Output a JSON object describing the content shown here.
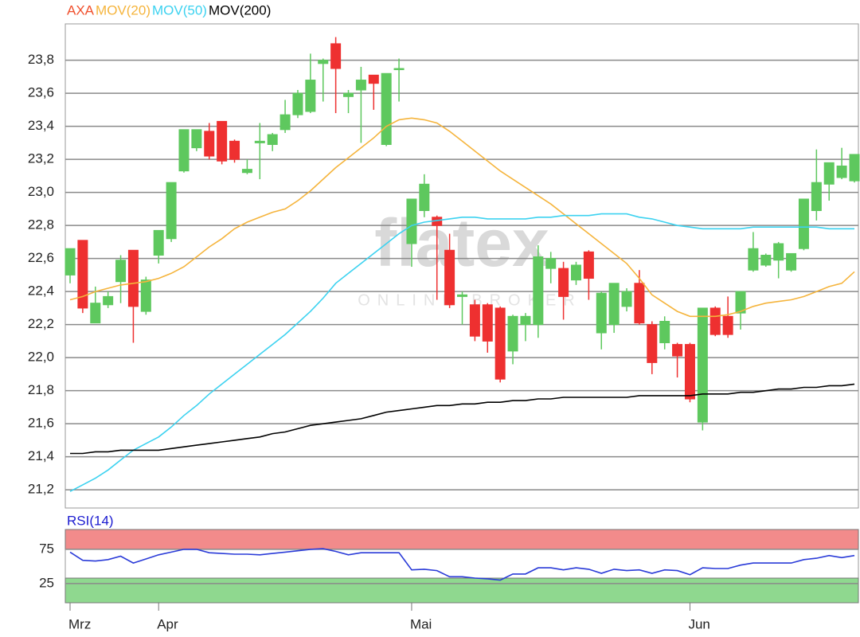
{
  "chart_data": [
    {
      "type": "candlestick",
      "categories": [
        "Mrz",
        null,
        null,
        null,
        null,
        null,
        null,
        "Apr",
        null,
        null,
        null,
        null,
        null,
        null,
        null,
        null,
        null,
        null,
        null,
        null,
        null,
        null,
        null,
        null,
        null,
        null,
        null,
        "Mai",
        null,
        null,
        null,
        null,
        null,
        null,
        null,
        null,
        null,
        null,
        null,
        null,
        null,
        null,
        null,
        null,
        null,
        null,
        null,
        null,
        null,
        "Jun",
        null,
        null,
        null,
        null,
        null,
        null,
        null,
        null,
        null,
        null,
        null,
        null,
        null
      ],
      "series": [
        {
          "name": "AXA",
          "color": "#f0502d",
          "up_color": "#5ec85e",
          "down_color": "#ee3030",
          "open": [
            22.5,
            22.71,
            22.21,
            22.32,
            22.46,
            22.65,
            22.28,
            22.62,
            22.72,
            23.13,
            23.27,
            23.37,
            23.43,
            23.31,
            23.12,
            23.3,
            23.29,
            23.38,
            23.47,
            23.49,
            23.78,
            23.9,
            23.58,
            23.62,
            23.71,
            23.29,
            23.75,
            22.69,
            22.89,
            22.85,
            22.65,
            22.37,
            22.32,
            22.32,
            22.3,
            22.04,
            22.2,
            22.2,
            22.54,
            22.54,
            22.47,
            22.64,
            22.15,
            22.2,
            22.31,
            22.45,
            22.2,
            22.09,
            22.08,
            22.08,
            21.61,
            22.3,
            22.25,
            22.27,
            22.53,
            22.56,
            22.59,
            22.53,
            22.66,
            22.89,
            23.05,
            23.09,
            23.07
          ],
          "high": [
            22.66,
            22.71,
            22.43,
            22.4,
            22.62,
            22.65,
            22.49,
            22.77,
            23.06,
            23.38,
            23.38,
            23.42,
            23.43,
            23.32,
            23.2,
            23.42,
            23.36,
            23.56,
            23.62,
            23.84,
            23.81,
            23.94,
            23.62,
            23.76,
            23.71,
            23.72,
            23.81,
            22.96,
            23.11,
            22.86,
            22.75,
            22.4,
            22.35,
            22.33,
            22.31,
            22.26,
            22.27,
            22.68,
            22.64,
            22.58,
            22.58,
            22.65,
            22.4,
            22.45,
            22.42,
            22.53,
            22.22,
            22.25,
            22.09,
            22.09,
            22.3,
            22.31,
            22.37,
            22.4,
            22.76,
            22.63,
            22.7,
            22.63,
            22.96,
            23.26,
            23.18,
            23.27,
            23.23
          ],
          "low": [
            22.45,
            22.27,
            22.21,
            22.3,
            22.33,
            22.09,
            22.26,
            22.57,
            22.7,
            23.12,
            23.25,
            23.2,
            23.17,
            23.18,
            23.11,
            23.08,
            23.25,
            23.36,
            23.45,
            23.48,
            23.55,
            23.48,
            23.48,
            23.3,
            23.5,
            23.28,
            23.55,
            22.55,
            22.85,
            22.35,
            22.3,
            22.2,
            22.1,
            22.03,
            21.85,
            21.96,
            22.1,
            22.12,
            22.45,
            22.23,
            22.44,
            22.35,
            22.05,
            22.15,
            22.28,
            22.2,
            21.9,
            22.05,
            21.88,
            21.73,
            21.56,
            22.13,
            22.12,
            22.17,
            22.52,
            22.55,
            22.48,
            22.52,
            22.65,
            22.83,
            22.95,
            23.08,
            23.06
          ],
          "close": [
            22.66,
            22.3,
            22.33,
            22.37,
            22.59,
            22.31,
            22.47,
            22.77,
            23.06,
            23.38,
            23.38,
            23.22,
            23.19,
            23.2,
            23.14,
            23.31,
            23.35,
            23.47,
            23.6,
            23.68,
            23.8,
            23.75,
            23.6,
            23.68,
            23.66,
            23.72,
            23.75,
            22.96,
            23.05,
            22.8,
            22.32,
            22.38,
            22.13,
            22.1,
            21.87,
            22.25,
            22.25,
            22.61,
            22.6,
            22.37,
            22.56,
            22.48,
            22.39,
            22.45,
            22.4,
            22.21,
            21.97,
            22.22,
            22.01,
            21.75,
            22.3,
            22.14,
            22.14,
            22.4,
            22.66,
            22.62,
            22.69,
            22.63,
            22.96,
            23.06,
            23.18,
            23.16,
            23.23
          ]
        },
        {
          "name": "MOV(20)",
          "color": "#f5b43c",
          "values": [
            22.35,
            22.37,
            22.4,
            22.42,
            22.44,
            22.45,
            22.46,
            22.48,
            22.51,
            22.55,
            22.61,
            22.67,
            22.72,
            22.78,
            22.82,
            22.85,
            22.88,
            22.9,
            22.95,
            23.01,
            23.08,
            23.15,
            23.21,
            23.27,
            23.33,
            23.4,
            23.44,
            23.45,
            23.44,
            23.42,
            23.37,
            23.31,
            23.25,
            23.19,
            23.13,
            23.08,
            23.03,
            22.98,
            22.93,
            22.87,
            22.81,
            22.75,
            22.69,
            22.63,
            22.57,
            22.48,
            22.38,
            22.33,
            22.28,
            22.25,
            22.25,
            22.25,
            22.26,
            22.28,
            22.31,
            22.33,
            22.34,
            22.35,
            22.37,
            22.4,
            22.43,
            22.45,
            22.52
          ]
        },
        {
          "name": "MOV(50)",
          "color": "#3cd2f0",
          "values": [
            21.19,
            21.23,
            21.27,
            21.32,
            21.38,
            21.44,
            21.48,
            21.52,
            21.58,
            21.65,
            21.71,
            21.78,
            21.84,
            21.9,
            21.96,
            22.02,
            22.08,
            22.14,
            22.21,
            22.28,
            22.36,
            22.45,
            22.51,
            22.57,
            22.63,
            22.69,
            22.75,
            22.8,
            22.82,
            22.83,
            22.84,
            22.85,
            22.85,
            22.84,
            22.84,
            22.84,
            22.84,
            22.85,
            22.85,
            22.86,
            22.86,
            22.86,
            22.87,
            22.87,
            22.87,
            22.85,
            22.84,
            22.82,
            22.8,
            22.79,
            22.78,
            22.78,
            22.78,
            22.78,
            22.79,
            22.79,
            22.79,
            22.79,
            22.79,
            22.79,
            22.78,
            22.78,
            22.78
          ]
        },
        {
          "name": "MOV(200)",
          "color": "#000000",
          "values": [
            21.42,
            21.42,
            21.43,
            21.43,
            21.44,
            21.44,
            21.44,
            21.44,
            21.45,
            21.46,
            21.47,
            21.48,
            21.49,
            21.5,
            21.51,
            21.52,
            21.54,
            21.55,
            21.57,
            21.59,
            21.6,
            21.61,
            21.62,
            21.63,
            21.65,
            21.67,
            21.68,
            21.69,
            21.7,
            21.71,
            21.71,
            21.72,
            21.72,
            21.73,
            21.73,
            21.74,
            21.74,
            21.75,
            21.75,
            21.76,
            21.76,
            21.76,
            21.76,
            21.76,
            21.76,
            21.77,
            21.77,
            21.77,
            21.77,
            21.77,
            21.78,
            21.78,
            21.78,
            21.79,
            21.79,
            21.8,
            21.81,
            21.81,
            21.82,
            21.82,
            21.83,
            21.83,
            21.84
          ]
        }
      ],
      "ylim": [
        21.09,
        24.02
      ],
      "yticks": [
        {
          "value": 21.2,
          "label": "21,2"
        },
        {
          "value": 21.4,
          "label": "21,4"
        },
        {
          "value": 21.6,
          "label": "21,6"
        },
        {
          "value": 21.8,
          "label": "21,8"
        },
        {
          "value": 22.0,
          "label": "22,0"
        },
        {
          "value": 22.2,
          "label": "22,2"
        },
        {
          "value": 22.4,
          "label": "22,4"
        },
        {
          "value": 22.6,
          "label": "22,6"
        },
        {
          "value": 22.8,
          "label": "22,8"
        },
        {
          "value": 23.0,
          "label": "23,0"
        },
        {
          "value": 23.2,
          "label": "23,2"
        },
        {
          "value": 23.4,
          "label": "23,4"
        },
        {
          "value": 23.6,
          "label": "23,6"
        },
        {
          "value": 23.8,
          "label": "23,8"
        }
      ],
      "grid": true,
      "watermark": {
        "title": "flatex",
        "subtitle": "ONLINE BROKER"
      }
    },
    {
      "type": "line",
      "title": "RSI(14)",
      "title_color": "#1a1ad0",
      "series": [
        {
          "color": "#2a3bd8",
          "values": [
            71,
            59,
            58,
            60,
            65,
            55,
            61,
            67,
            71,
            75,
            75,
            70,
            69,
            68,
            68,
            67,
            69,
            71,
            73,
            75,
            76,
            72,
            67,
            70,
            70,
            70,
            70,
            45,
            46,
            44,
            35,
            35,
            33,
            32,
            30,
            39,
            39,
            48,
            48,
            45,
            48,
            46,
            40,
            46,
            44,
            45,
            40,
            45,
            44,
            38,
            48,
            47,
            47,
            52,
            55,
            55,
            55,
            55,
            60,
            62,
            66,
            63,
            66
          ]
        }
      ],
      "ylim": [
        -3,
        104
      ],
      "yticks": [
        25,
        75
      ],
      "zones": [
        {
          "from": 75,
          "to": 104,
          "color": "#f28b8b"
        },
        {
          "from": -3,
          "to": 33,
          "color": "#8fd88f"
        }
      ]
    }
  ]
}
